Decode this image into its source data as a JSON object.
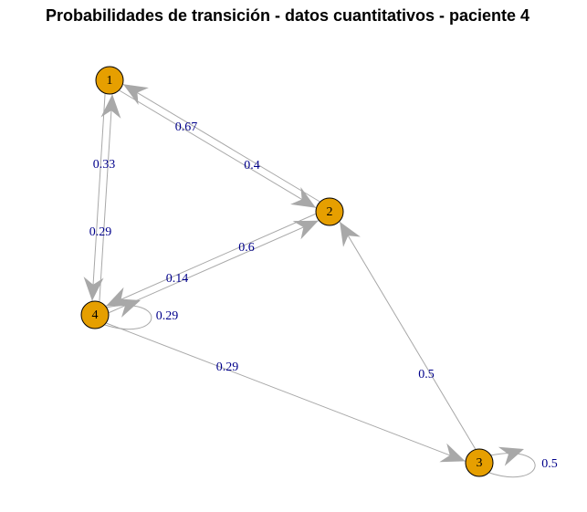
{
  "title": "Probabilidades de transición - datos cuantitativos - paciente 4",
  "colors": {
    "node_fill": "#e69f00",
    "node_stroke": "#000000",
    "edge": "#a8a8a8",
    "edge_label": "#00008b"
  },
  "nodes": [
    {
      "id": "1",
      "label": "1"
    },
    {
      "id": "2",
      "label": "2"
    },
    {
      "id": "3",
      "label": "3"
    },
    {
      "id": "4",
      "label": "4"
    }
  ],
  "edges": [
    {
      "from": "1",
      "to": "2",
      "label": "0.4"
    },
    {
      "from": "2",
      "to": "1",
      "label": "0.67"
    },
    {
      "from": "1",
      "to": "4",
      "label": "0.29"
    },
    {
      "from": "4",
      "to": "1",
      "label": "0.33"
    },
    {
      "from": "4",
      "to": "2",
      "label": "0.6"
    },
    {
      "from": "2",
      "to": "4",
      "label": "0.14"
    },
    {
      "from": "4",
      "to": "4",
      "label": "0.29"
    },
    {
      "from": "4",
      "to": "3",
      "label": "0.29"
    },
    {
      "from": "3",
      "to": "2",
      "label": "0.5"
    },
    {
      "from": "3",
      "to": "3",
      "label": "0.5"
    }
  ]
}
